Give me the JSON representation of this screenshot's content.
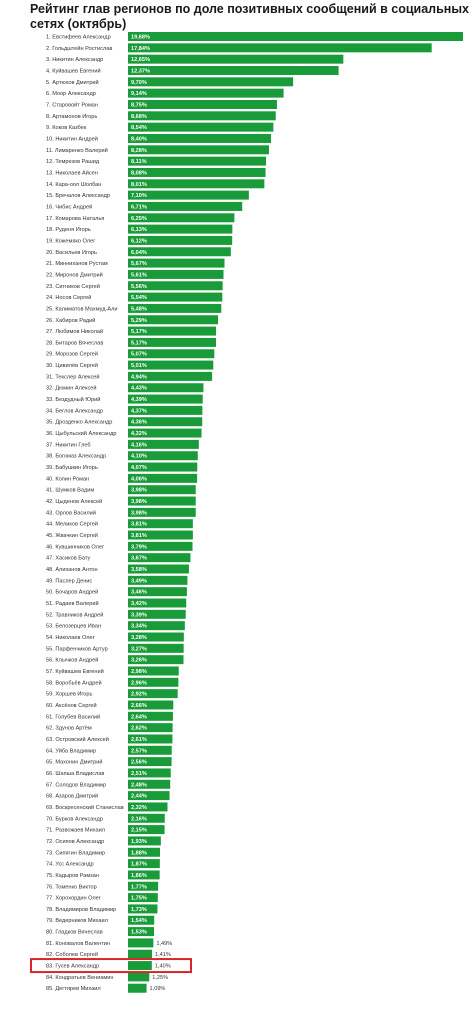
{
  "chart_data": {
    "type": "bar",
    "orientation": "horizontal",
    "title": "Рейтинг глав регионов по доле позитивных сообщений в социальных сетях (октябрь)",
    "bar_color": "#1a9b3a",
    "highlight_color": "#d9262b",
    "highlight_index": 82,
    "categories": [
      "1. Евстифеев Александр",
      "2. Гольдштейн Ростислав",
      "3. Никитин Александр",
      "4. Куйвашев Евгений",
      "5. Артюхов Дмитрий",
      "6. Моор Александр",
      "7. Старовойт Роман",
      "8. Артамонов Игорь",
      "9. Коков Казбек",
      "10. Никитин Андрей",
      "11. Лимаренко Валерий",
      "12. Темрезов Рашид",
      "13. Николаев Айсен",
      "14. Кара-оол Шолбан",
      "15. Бречалов Александр",
      "16. Чибис Андрей",
      "17. Комарова Наталья",
      "18. Руденя Игорь",
      "19. Кожемяко Олег",
      "20. Васильев Игорь",
      "21. Минниханов Рустам",
      "22. Миронов Дмитрий",
      "23. Ситников Сергей",
      "24. Носов Сергей",
      "25. Калиматов Махмуд-Али",
      "26. Хабиров Радий",
      "27. Любимов Николай",
      "28. Битаров Вячеслав",
      "29. Морозов Сергей",
      "30. Цивилёв Сергей",
      "31. Текслер Алексей",
      "32. Дюмин Алексей",
      "33. Бездудный Юрий",
      "34. Беглов Александр",
      "35. Дрозденко Александр",
      "36. Цыбульский Александр",
      "37. Никитин Глеб",
      "38. Богомаз Александр",
      "39. Бабушкин Игорь",
      "40. Копин Роман",
      "41. Шумков Вадим",
      "42. Цыденов Алексей",
      "43. Орлов Василий",
      "44. Меликов Сергей",
      "45. Жвачкин Сергей",
      "46. Кувшинников Олег",
      "47. Хасиков Бату",
      "48. Алиханов Антон",
      "49. Паслер Денис",
      "50. Бочаров Андрей",
      "51. Радаев Валерий",
      "52. Травников Андрей",
      "53. Белозерцев Иван",
      "54. Николаев Олег",
      "55. Парфенчиков Артур",
      "56. Клычков Андрей",
      "57. Куйвашев Евгений",
      "58. Воробьёв Андрей",
      "59. Хоршев Игорь",
      "60. Аксёнов Сергей",
      "61. Голубев Василий",
      "62. Здунов Артём",
      "63. Островский Алексей",
      "64. Уйба Владимир",
      "65. Махонин Дмитрий",
      "66. Шапша Владислав",
      "67. Солодов Владимир",
      "68. Азаров Дмитрий",
      "69. Воскресенский Станислав",
      "70. Бурков Александр",
      "71. Развожаев Михаил",
      "72. Осипов Александр",
      "73. Сипягин Владимир",
      "74. Усс Александр",
      "75. Кадыров Рамзан",
      "76. Томенко Виктор",
      "77. Хорохордин Олег",
      "78. Владимиров Владимир",
      "79. Ведерников Михаил",
      "80. Гладков Вячеслав",
      "81. Коновалов Валентин",
      "82. Соболев Сергей",
      "83. Гусев Александр",
      "84. Кондратьев Вениамин",
      "85. Дегтярев Михаил"
    ],
    "values": [
      19.68,
      17.84,
      12.65,
      12.37,
      9.7,
      9.14,
      8.75,
      8.68,
      8.54,
      8.4,
      8.28,
      8.11,
      8.08,
      8.01,
      7.1,
      6.71,
      6.25,
      6.13,
      6.12,
      6.04,
      5.67,
      5.61,
      5.56,
      5.54,
      5.48,
      5.29,
      5.17,
      5.17,
      5.07,
      5.01,
      4.94,
      4.43,
      4.39,
      4.37,
      4.36,
      4.32,
      4.16,
      4.1,
      4.07,
      4.06,
      3.98,
      3.98,
      3.98,
      3.81,
      3.81,
      3.79,
      3.67,
      3.58,
      3.49,
      3.46,
      3.42,
      3.39,
      3.34,
      3.28,
      3.27,
      3.26,
      2.98,
      2.96,
      2.92,
      2.66,
      2.64,
      2.62,
      2.61,
      2.57,
      2.56,
      2.51,
      2.48,
      2.44,
      2.32,
      2.16,
      2.15,
      1.93,
      1.88,
      1.87,
      1.86,
      1.77,
      1.75,
      1.73,
      1.54,
      1.53,
      1.49,
      1.41,
      1.4,
      1.25,
      1.09
    ],
    "value_labels": [
      "19,68%",
      "17,84%",
      "12,65%",
      "12,37%",
      "9,70%",
      "9,14%",
      "8,75%",
      "8,68%",
      "8,54%",
      "8,40%",
      "8,28%",
      "8,11%",
      "8,08%",
      "8,01%",
      "7,10%",
      "6,71%",
      "6,25%",
      "6,13%",
      "6,12%",
      "6,04%",
      "5,67%",
      "5,61%",
      "5,56%",
      "5,54%",
      "5,48%",
      "5,29%",
      "5,17%",
      "5,17%",
      "5,07%",
      "5,01%",
      "4,94%",
      "4,43%",
      "4,39%",
      "4,37%",
      "4,36%",
      "4,32%",
      "4,16%",
      "4,10%",
      "4,07%",
      "4,06%",
      "3,98%",
      "3,98%",
      "3,98%",
      "3,81%",
      "3,81%",
      "3,79%",
      "3,67%",
      "3,58%",
      "3,49%",
      "3,46%",
      "3,42%",
      "3,39%",
      "3,34%",
      "3,28%",
      "3,27%",
      "3,26%",
      "2,98%",
      "2,96%",
      "2,92%",
      "2,66%",
      "2,64%",
      "2,62%",
      "2,61%",
      "2,57%",
      "2,56%",
      "2,51%",
      "2,48%",
      "2,44%",
      "2,32%",
      "2,16%",
      "2,15%",
      "1,93%",
      "1,88%",
      "1,87%",
      "1,86%",
      "1,77%",
      "1,75%",
      "1,73%",
      "1,54%",
      "1,53%",
      "1,49%",
      "1,41%",
      "1,40%",
      "1,25%",
      "1,09%"
    ]
  }
}
